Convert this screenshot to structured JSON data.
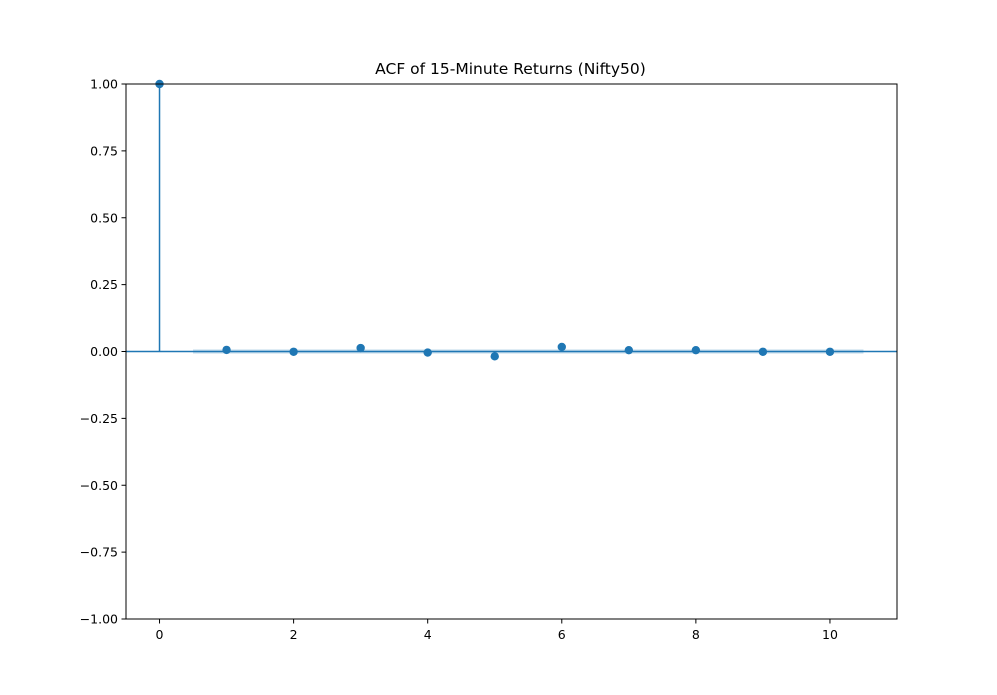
{
  "chart_data": {
    "type": "scatter",
    "subtype": "stem",
    "title": "ACF of 15-Minute Returns (Nifty50)",
    "xlabel": "",
    "ylabel": "",
    "xlim": [
      -0.5,
      11
    ],
    "ylim": [
      -1.0,
      1.0
    ],
    "x_ticks": [
      0,
      2,
      4,
      6,
      8,
      10
    ],
    "x_tick_labels": [
      "0",
      "2",
      "4",
      "6",
      "8",
      "10"
    ],
    "y_ticks": [
      1.0,
      0.75,
      0.5,
      0.25,
      0.0,
      -0.25,
      -0.5,
      -0.75,
      -1.0
    ],
    "y_tick_labels": [
      "1.00",
      "0.75",
      "0.50",
      "0.25",
      "0.00",
      "−0.25",
      "−0.50",
      "−0.75",
      "−1.00"
    ],
    "grid": false,
    "legend": "none",
    "series": [
      {
        "x": [
          0,
          1,
          2,
          3,
          4,
          5,
          6,
          7,
          8,
          9,
          10
        ],
        "values": [
          1.0,
          0.006,
          -0.001,
          0.013,
          -0.004,
          -0.018,
          0.017,
          0.005,
          0.005,
          -0.001,
          -0.001
        ]
      }
    ],
    "confidence_band": {
      "x_range": [
        0.5,
        10.5
      ],
      "lower": -0.004,
      "upper": 0.004
    },
    "colors": {
      "marker": "#1f77b4",
      "band": "#1f77b4",
      "zero_line": "#1f77b4"
    }
  }
}
